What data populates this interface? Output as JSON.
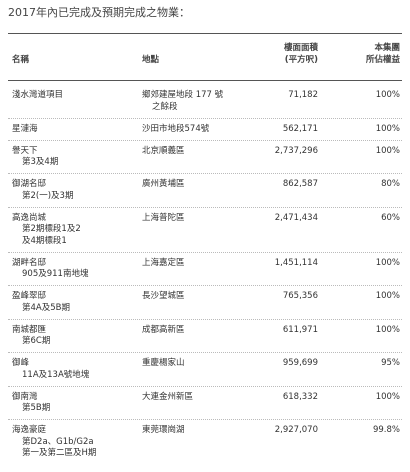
{
  "title": "2017年內已完成及預期完成之物業：",
  "table": {
    "headers": [
      [
        "名稱"
      ],
      [
        "地點"
      ],
      [
        "樓面面積",
        "(平方呎)"
      ],
      [
        "本集團",
        "所佔權益"
      ]
    ],
    "rows": [
      {
        "name": [
          "淺水灣道項目"
        ],
        "location": [
          "鄉郊建屋地段 177 號",
          "之餘段"
        ],
        "area": "71,182",
        "share": "100%"
      },
      {
        "name": [
          "星漣海"
        ],
        "location": [
          "沙田市地段574號"
        ],
        "area": "562,171",
        "share": "100%"
      },
      {
        "name": [
          "譽天下",
          "第3及4期"
        ],
        "location": [
          "北京順義區"
        ],
        "area": "2,737,296",
        "share": "100%"
      },
      {
        "name": [
          "御湖名邸",
          "第2(一)及3期"
        ],
        "location": [
          "廣州黃埔區"
        ],
        "area": "862,587",
        "share": "80%"
      },
      {
        "name": [
          "高逸尚城",
          "第2期標段1及2",
          "及4期標段1"
        ],
        "location": [
          "上海普陀區"
        ],
        "area": "2,471,434",
        "share": "60%"
      },
      {
        "name": [
          "湖畔名邸",
          "905及911南地塊"
        ],
        "location": [
          "上海嘉定區"
        ],
        "area": "1,451,114",
        "share": "100%"
      },
      {
        "name": [
          "盈峰翠邸",
          "第4A及5B期"
        ],
        "location": [
          "長沙望城區"
        ],
        "area": "765,356",
        "share": "100%"
      },
      {
        "name": [
          "南城都匯",
          "第6C期"
        ],
        "location": [
          "成都高新區"
        ],
        "area": "611,971",
        "share": "100%"
      },
      {
        "name": [
          "御峰",
          "11A及13A號地塊"
        ],
        "location": [
          "重慶楊家山"
        ],
        "area": "959,699",
        "share": "95%"
      },
      {
        "name": [
          "御南灣",
          "第5B期"
        ],
        "location": [
          "大連金州新區"
        ],
        "area": "618,332",
        "share": "100%"
      },
      {
        "name": [
          "海逸豪庭",
          "第D2a、G1b/G2a",
          "第一及第二區及H期"
        ],
        "location": [
          "東莞環崗湖"
        ],
        "area": "2,927,070",
        "share": "99.8%"
      }
    ]
  }
}
